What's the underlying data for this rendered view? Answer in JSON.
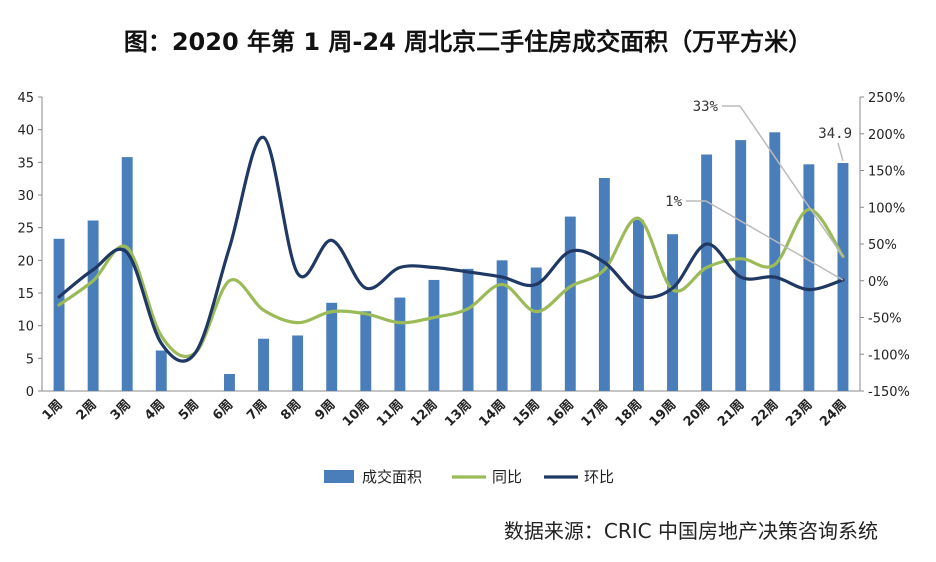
{
  "chart_data": {
    "type": "bar",
    "title": "图：2020 年第 1 周-24 周北京二手住房成交面积（万平方米）",
    "source": "数据来源：CRIC 中国房地产决策咨询系统",
    "categories": [
      "1周",
      "2周",
      "3周",
      "4周",
      "5周",
      "6周",
      "7周",
      "8周",
      "9周",
      "10周",
      "11周",
      "12周",
      "13周",
      "14周",
      "15周",
      "16周",
      "17周",
      "18周",
      "19周",
      "20周",
      "21周",
      "22周",
      "23周",
      "24周"
    ],
    "y_left": {
      "range": [
        0,
        45
      ],
      "ticks": [
        "0",
        "5",
        "10",
        "15",
        "20",
        "25",
        "30",
        "35",
        "40",
        "45"
      ]
    },
    "y_right": {
      "range": [
        -150,
        250
      ],
      "ticks": [
        "-150%",
        "-100%",
        "-50%",
        "0%",
        "50%",
        "100%",
        "150%",
        "200%",
        "250%"
      ]
    },
    "grid": false,
    "legend_position": "bottom",
    "series": [
      {
        "name": "成交面积",
        "kind": "bar",
        "axis": "left",
        "color": "#4a7ebb",
        "values": [
          23.3,
          26.1,
          35.8,
          6.2,
          0,
          2.6,
          8.0,
          8.5,
          13.5,
          12.2,
          14.3,
          17.0,
          18.7,
          20.0,
          18.9,
          26.7,
          32.6,
          26.2,
          24.0,
          36.2,
          38.4,
          39.6,
          34.7,
          34.9
        ]
      },
      {
        "name": "同比",
        "kind": "line",
        "axis": "right",
        "color": "#9bbb59",
        "values": [
          -33,
          0,
          45,
          -75,
          -98,
          0,
          -40,
          -57,
          -42,
          -45,
          -57,
          -50,
          -38,
          -5,
          -42,
          -8,
          15,
          85,
          -12,
          18,
          30,
          22,
          97,
          33
        ]
      },
      {
        "name": "环比",
        "kind": "line",
        "axis": "right",
        "color": "#1f3864",
        "values": [
          -22,
          15,
          38,
          -85,
          -98,
          45,
          195,
          10,
          55,
          -10,
          18,
          18,
          12,
          5,
          -5,
          40,
          25,
          -20,
          -10,
          50,
          5,
          5,
          -12,
          1
        ]
      }
    ],
    "annotations": [
      {
        "text": "33%",
        "series": "同比",
        "point": "24周"
      },
      {
        "text": "1%",
        "series": "环比",
        "point": "24周"
      },
      {
        "text": "34.9",
        "series": "成交面积",
        "point": "24周"
      }
    ]
  }
}
